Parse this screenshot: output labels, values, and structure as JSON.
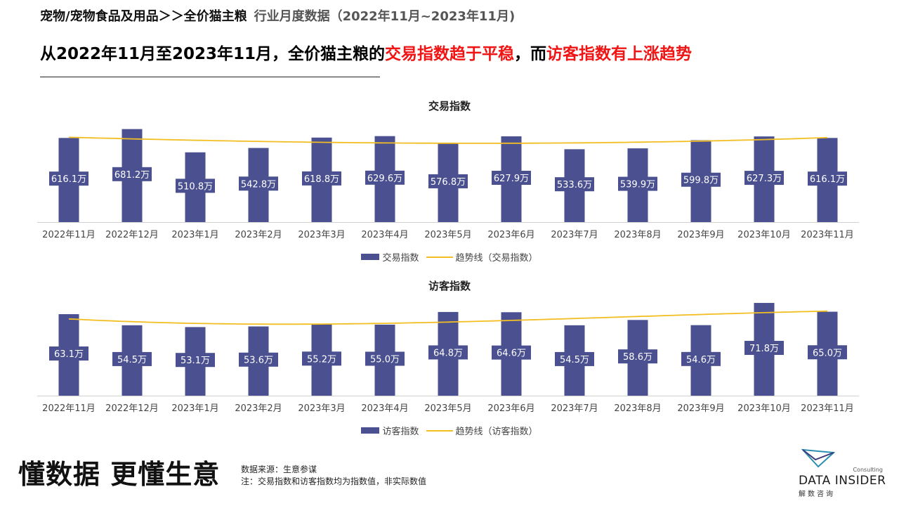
{
  "header": {
    "breadcrumb": "宠物/宠物食品及用品＞＞全价猫主粮",
    "subtitle": "行业月度数据（2022年11月~2023年11月)",
    "headline_part1": "从2022年11月至2023年11月，全价猫主粮的",
    "headline_red1": "交易指数趋于平稳",
    "headline_part2": "，而",
    "headline_red2": "访客指数有上涨趋势"
  },
  "colors": {
    "bar": "#4a5090",
    "trend": "#f2be22",
    "highlight": "#f01414"
  },
  "chart_data": [
    {
      "type": "bar",
      "title": "交易指数",
      "categories": [
        "2022年11月",
        "2022年12月",
        "2023年1月",
        "2023年2月",
        "2023年3月",
        "2023年4月",
        "2023年5月",
        "2023年6月",
        "2023年7月",
        "2023年8月",
        "2023年9月",
        "2023年10月",
        "2023年11月"
      ],
      "series": [
        {
          "name": "交易指数",
          "values": [
            616.1,
            681.2,
            510.8,
            542.8,
            618.8,
            629.6,
            576.8,
            627.9,
            533.6,
            539.9,
            599.8,
            627.3,
            616.1
          ]
        }
      ],
      "data_labels": [
        "616.1万",
        "681.2万",
        "510.8万",
        "542.8万",
        "618.8万",
        "629.6万",
        "576.8万",
        "627.9万",
        "533.6万",
        "539.9万",
        "599.8万",
        "627.3万",
        "616.1万"
      ],
      "trendline": {
        "name": "趋势线（交易指数）",
        "type": "polynomial"
      },
      "unit": "万",
      "ylim": [
        0,
        700
      ],
      "legend": "bottom",
      "grid": false
    },
    {
      "type": "bar",
      "title": "访客指数",
      "categories": [
        "2022年11月",
        "2022年12月",
        "2023年1月",
        "2023年2月",
        "2023年3月",
        "2023年4月",
        "2023年5月",
        "2023年6月",
        "2023年7月",
        "2023年8月",
        "2023年9月",
        "2023年10月",
        "2023年11月"
      ],
      "series": [
        {
          "name": "访客指数",
          "values": [
            63.1,
            54.5,
            53.1,
            53.6,
            55.2,
            55.0,
            64.8,
            64.6,
            54.5,
            58.6,
            54.6,
            71.8,
            65.0
          ]
        }
      ],
      "data_labels": [
        "63.1万",
        "54.5万",
        "53.1万",
        "53.6万",
        "55.2万",
        "55.0万",
        "64.8万",
        "64.6万",
        "54.5万",
        "58.6万",
        "54.6万",
        "71.8万",
        "65.0万"
      ],
      "trendline": {
        "name": "趋势线（访客指数）",
        "type": "polynomial"
      },
      "unit": "万",
      "ylim": [
        0,
        74
      ],
      "legend": "bottom",
      "grid": false
    }
  ],
  "footer": {
    "slogan": "懂数据 更懂生意",
    "source": "数据来源：生意参谋",
    "note": "注：交易指数和访客指数均为指数值，非实际数值",
    "logo_consulting": "Consulting",
    "logo_brand": "DATA INSIDER",
    "logo_cn": "解数咨询"
  }
}
